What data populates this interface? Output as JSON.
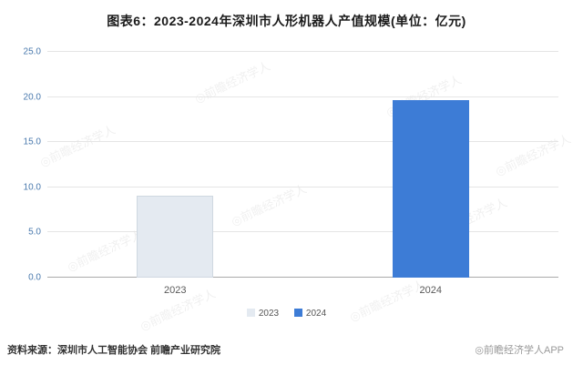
{
  "title": "图表6：2023-2024年深圳市人形机器人产值规模(单位：亿元)",
  "chart_data": {
    "type": "bar",
    "title": "2023-2024年深圳市人形机器人产值规模",
    "unit_label": "单位：亿元",
    "categories": [
      "2023",
      "2024"
    ],
    "values": [
      9.1,
      19.7
    ],
    "ylim": [
      0,
      25
    ],
    "yticks": [
      0,
      5,
      10,
      15,
      20,
      25
    ],
    "colors": [
      "#e4eaf1",
      "#3d7cd6"
    ],
    "bar_borders": [
      "#cfd8e1",
      null
    ],
    "legend": [
      "2023",
      "2024"
    ],
    "grid": "horizontal",
    "legend_position": "bottom-center",
    "ytick_color": "#4979ad"
  },
  "footer": {
    "source": "资料来源：深圳市人工智能协会 前瞻产业研究院",
    "credit": "◎前瞻经济学人APP"
  },
  "watermark": {
    "text": "◎前瞻经济学人"
  }
}
